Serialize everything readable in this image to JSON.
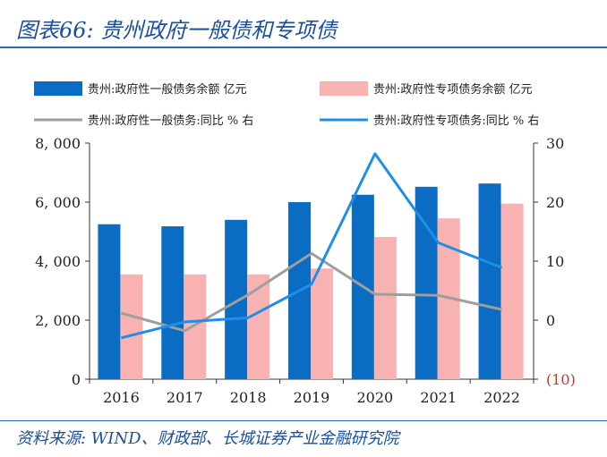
{
  "title": "图表66:  贵州政府一般债和专项债",
  "source": "资料来源: WIND、财政部、长城证券产业金融研究院",
  "colors": {
    "general_bar": "#0a6cc2",
    "special_bar": "#f9b2b2",
    "general_line": "#9e9e9e",
    "special_line": "#1e8fe8",
    "negative_tick": "#c0392b",
    "axis": "#333333"
  },
  "chart_data": {
    "type": "bar",
    "title": "贵州政府一般债和专项债",
    "categories": [
      "2016",
      "2017",
      "2018",
      "2019",
      "2020",
      "2021",
      "2022"
    ],
    "series": [
      {
        "name": "贵州:政府性一般债务余额  亿元",
        "kind": "bar",
        "axis": "left",
        "values": [
          5250,
          5180,
          5400,
          6000,
          6250,
          6520,
          6630
        ]
      },
      {
        "name": "贵州:政府性专项债务余额  亿元",
        "kind": "bar",
        "axis": "left",
        "values": [
          3550,
          3550,
          3550,
          3750,
          4820,
          5450,
          5950
        ]
      },
      {
        "name": "贵州:政府性一般债务:同比  % 右",
        "kind": "line",
        "axis": "right",
        "values": [
          1.2,
          -1.8,
          4.3,
          11.3,
          4.4,
          4.2,
          1.8
        ]
      },
      {
        "name": "贵州:政府性专项债务:同比  % 右",
        "kind": "line",
        "axis": "right",
        "values": [
          -3.0,
          -0.3,
          0.4,
          6.1,
          28.2,
          13.1,
          8.9
        ]
      }
    ],
    "y_left": {
      "min": 0,
      "max": 8000,
      "ticks": [
        0,
        2000,
        4000,
        6000,
        8000
      ],
      "tick_labels": [
        "0",
        "2, 000",
        "4, 000",
        "6, 000",
        "8, 000"
      ]
    },
    "y_right": {
      "min": -10,
      "max": 30,
      "ticks": [
        -10,
        0,
        10,
        20,
        30
      ],
      "tick_labels": [
        "(10)",
        "0",
        "10",
        "20",
        "30"
      ]
    },
    "legend_position": "top",
    "grid": false
  }
}
